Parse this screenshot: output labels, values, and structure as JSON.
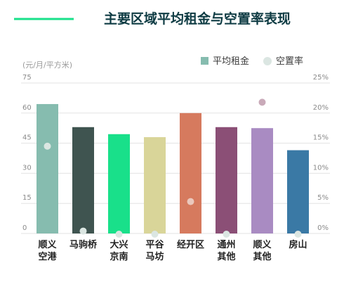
{
  "chart_data": {
    "type": "bar",
    "title": "主要区域平均租金与空置率表现",
    "y_unit_label": "(元/月/平方米)",
    "categories": [
      [
        "顺义",
        "空港"
      ],
      [
        "马驹桥"
      ],
      [
        "大兴",
        "京南"
      ],
      [
        "平谷",
        "马坊"
      ],
      [
        "经开区"
      ],
      [
        "通州",
        "其他"
      ],
      [
        "顺义",
        "其他"
      ],
      [
        "房山"
      ]
    ],
    "series": [
      {
        "name": "平均租金",
        "type": "bar",
        "axis": "left",
        "values": [
          64.5,
          53,
          49.5,
          48,
          60,
          53,
          52.5,
          41.5
        ],
        "colors": [
          "#86bcaf",
          "#3f5450",
          "#19e08a",
          "#d9d599",
          "#d67a5e",
          "#8b4f76",
          "#a98bc2",
          "#3a79a5"
        ]
      },
      {
        "name": "空置率",
        "type": "scatter",
        "axis": "right",
        "values": [
          14.5,
          0.4,
          -0.5,
          -0.7,
          5.3,
          -0.8,
          21.8,
          -1.0
        ],
        "point_colors": [
          "#dbe6e2",
          "#dbe6e2",
          "#dbe6e2",
          "#dbe6e2",
          "#eac8bd",
          "#dbe6e2",
          "#c9aab9",
          "#dbe6e2"
        ]
      }
    ],
    "left_axis": {
      "ylim": [
        0,
        75
      ],
      "ticks": [
        "0",
        "15",
        "30",
        "45",
        "60",
        "75"
      ]
    },
    "right_axis": {
      "ylim": [
        0,
        25
      ],
      "ticks": [
        "0%",
        "5%",
        "10%",
        "15%",
        "20%",
        "25%"
      ]
    },
    "legend_position": "top-right",
    "grid": true,
    "accent_color": "#19e08a"
  }
}
